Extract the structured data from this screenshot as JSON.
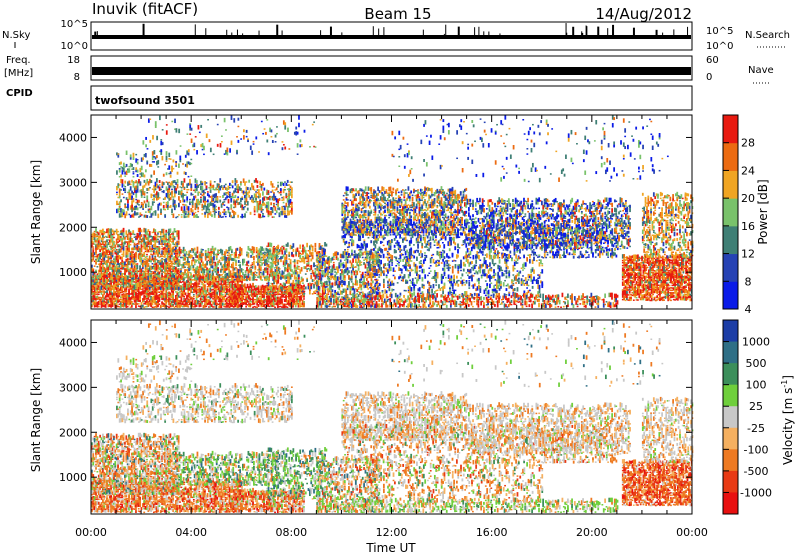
{
  "header": {
    "station": "Inuvik (fitACF)",
    "beam": "Beam 15",
    "date": "14/Aug/2012"
  },
  "panels": {
    "nsky": {
      "left_label": "N.Sky",
      "right_label": "N.Search",
      "ticks_left": [
        "10^5",
        "10^0"
      ],
      "ticks_right": [
        "10^5",
        "10^0"
      ]
    },
    "freq": {
      "left_label_1": "Freq.",
      "left_label_2": "[MHz]",
      "right_label": "Nave",
      "ticks_left": [
        "18",
        "8"
      ],
      "ticks_right": [
        "60",
        "0"
      ]
    },
    "cpid": {
      "label": "CPID",
      "program": "twofsound 3501"
    }
  },
  "chart_data": [
    {
      "type": "heatmap",
      "name": "power",
      "ylabel": "Slant Range [km]",
      "ylim": [
        180,
        4500
      ],
      "xlim": [
        0,
        24
      ],
      "yticks": [
        "1000",
        "2000",
        "3000",
        "4000"
      ],
      "colorbar": {
        "label": "Power [dB]",
        "ticks": [
          "4",
          "8",
          "12",
          "16",
          "20",
          "24",
          "28"
        ],
        "colors": [
          "#0a1be8",
          "#2642b4",
          "#3f7f75",
          "#79c26b",
          "#f0a523",
          "#ec6b11",
          "#e81a10"
        ]
      }
    },
    {
      "type": "heatmap",
      "name": "velocity",
      "ylabel": "Slant Range [km]",
      "ylim": [
        180,
        4500
      ],
      "xlim": [
        0,
        24
      ],
      "xlabel": "Time UT",
      "xticks": [
        "00:00",
        "04:00",
        "08:00",
        "12:00",
        "16:00",
        "20:00",
        "00:00"
      ],
      "yticks": [
        "1000",
        "2000",
        "3000",
        "4000"
      ],
      "colorbar": {
        "label": "Velocity [m s",
        "label_sup": "-1",
        "label_end": "]",
        "ticks": [
          "1000",
          "500",
          "100",
          "25",
          "-25",
          "-100",
          "-500",
          "-1000"
        ],
        "colors": [
          "#1c3da6",
          "#2f6f86",
          "#3c8f5b",
          "#6fcf3c",
          "#c8c8c8",
          "#f5b060",
          "#ee7a22",
          "#e83a14",
          "#e81010"
        ]
      }
    }
  ]
}
